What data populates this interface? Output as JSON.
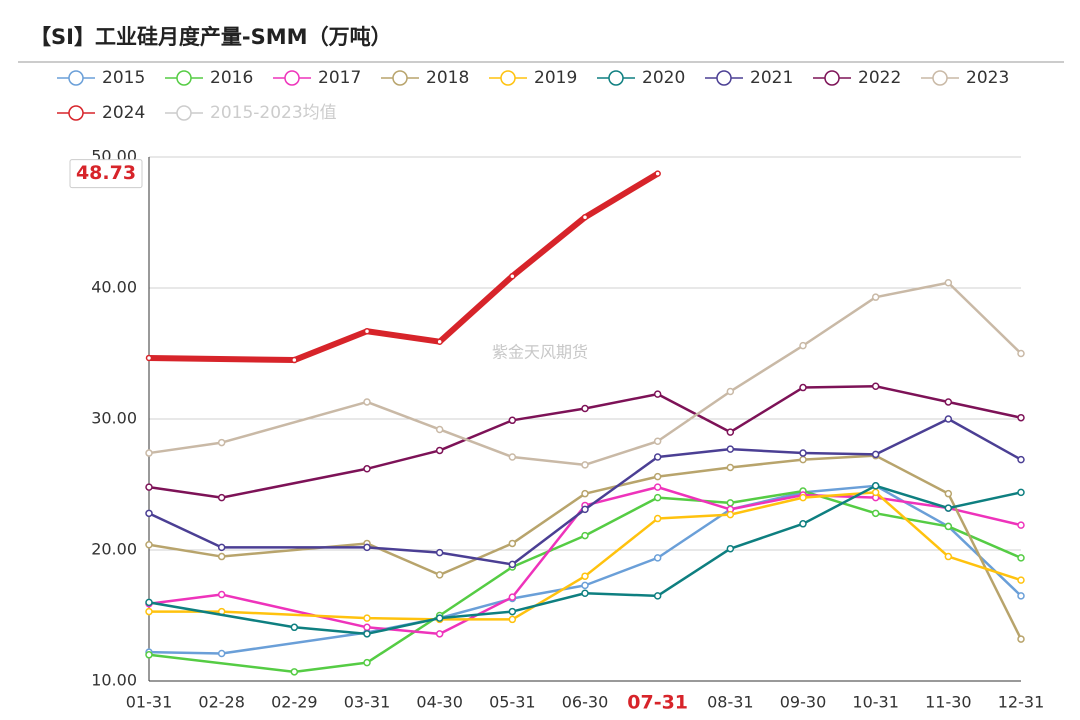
{
  "chart_data": {
    "type": "line",
    "title": "【SI】工业硅月度产量-SMM（万吨）",
    "watermark": "紫金天风期货",
    "categories": [
      "01-31",
      "02-28",
      "02-29",
      "03-31",
      "04-30",
      "05-31",
      "06-30",
      "07-31",
      "08-31",
      "09-30",
      "10-31",
      "11-30",
      "12-31"
    ],
    "highlight_category": 7,
    "pointer_series": 9,
    "connect_nulls": true,
    "ylim": [
      10,
      50
    ],
    "yticks": [
      {
        "value": 10,
        "label": "10.00"
      },
      {
        "value": 20,
        "label": "20.00"
      },
      {
        "value": 30,
        "label": "30.00"
      },
      {
        "value": 40,
        "label": "40.00"
      },
      {
        "value": 50,
        "label": "50.00"
      }
    ],
    "grid": true,
    "series": [
      {
        "name": "2015",
        "color": "#6a9fd8",
        "values": [
          12.2,
          12.1,
          null,
          13.7,
          14.8,
          16.3,
          17.3,
          19.4,
          23.1,
          24.4,
          24.9,
          21.8,
          16.5
        ]
      },
      {
        "name": "2016",
        "color": "#55cc44",
        "values": [
          12.0,
          null,
          10.7,
          11.4,
          15.0,
          18.7,
          21.1,
          24.0,
          23.6,
          24.5,
          22.8,
          21.8,
          19.4
        ]
      },
      {
        "name": "2017",
        "color": "#ee33bb",
        "values": [
          15.9,
          16.6,
          null,
          14.1,
          13.6,
          16.4,
          23.4,
          24.8,
          23.1,
          24.2,
          24.0,
          23.2,
          21.9
        ]
      },
      {
        "name": "2018",
        "color": "#b8a46c",
        "values": [
          20.4,
          19.5,
          null,
          20.5,
          18.1,
          20.5,
          24.3,
          25.6,
          26.3,
          26.9,
          27.2,
          24.3,
          13.2
        ]
      },
      {
        "name": "2019",
        "color": "#ffc20e",
        "values": [
          15.3,
          15.3,
          null,
          14.8,
          14.7,
          14.7,
          18.0,
          22.4,
          22.7,
          24.0,
          24.4,
          19.5,
          17.7
        ]
      },
      {
        "name": "2020",
        "color": "#0e7f80",
        "values": [
          16.0,
          null,
          14.1,
          13.6,
          14.8,
          15.3,
          16.7,
          16.5,
          20.1,
          22.0,
          24.9,
          23.2,
          24.4
        ]
      },
      {
        "name": "2021",
        "color": "#4b3f94",
        "values": [
          22.8,
          20.2,
          null,
          20.2,
          19.8,
          18.9,
          23.1,
          27.1,
          27.7,
          27.4,
          27.3,
          30.0,
          26.9
        ]
      },
      {
        "name": "2022",
        "color": "#7d1257",
        "values": [
          24.8,
          24.0,
          null,
          26.2,
          27.6,
          29.9,
          30.8,
          31.9,
          29.0,
          32.4,
          32.5,
          31.3,
          30.1
        ]
      },
      {
        "name": "2023",
        "color": "#c9b9a6",
        "values": [
          27.4,
          28.2,
          null,
          31.3,
          29.2,
          27.1,
          26.5,
          28.3,
          32.1,
          35.6,
          39.3,
          40.4,
          35.0
        ]
      },
      {
        "name": "2024",
        "color": "#d7242a",
        "values": [
          34.66,
          null,
          34.5,
          36.7,
          35.9,
          40.9,
          45.4,
          48.73,
          null,
          null,
          null,
          null,
          null
        ]
      },
      {
        "name": "2015-2023均值",
        "color": "#cccccc",
        "hidden": true
      }
    ]
  }
}
